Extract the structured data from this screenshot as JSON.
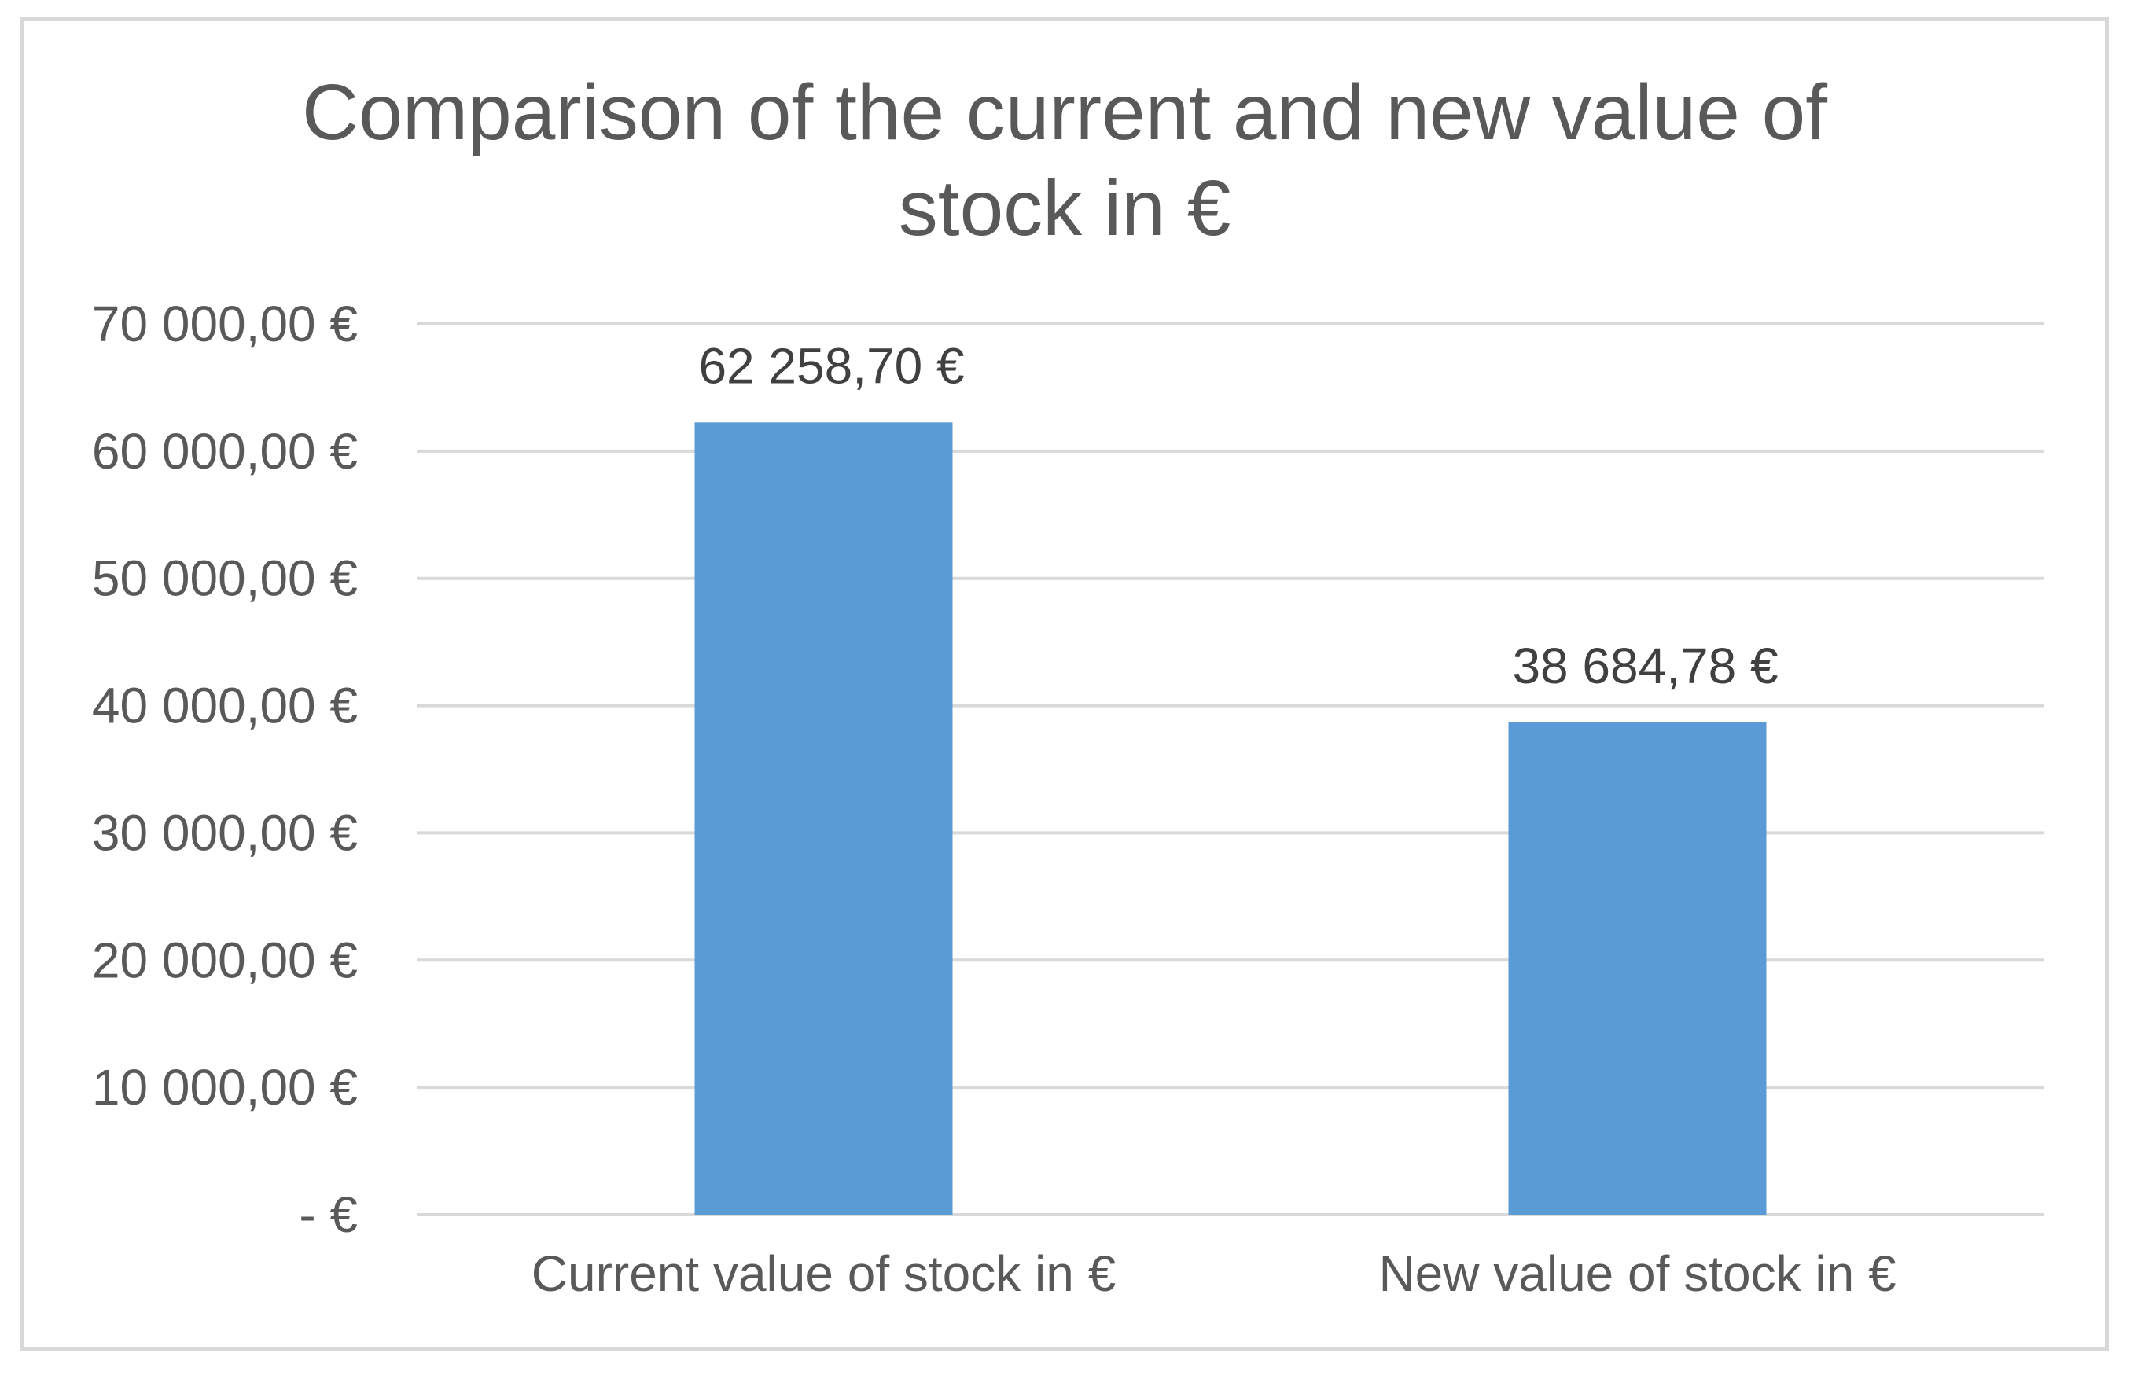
{
  "chart_data": {
    "type": "bar",
    "title": "Comparison of the current and new value of stock in €",
    "categories": [
      "Current value of stock in €",
      "New value of stock in €"
    ],
    "values": [
      62258.7,
      38684.78
    ],
    "data_labels": [
      "62 258,70 €",
      "38 684,78 €"
    ],
    "ylim": [
      0,
      70000
    ],
    "yticks": [
      0,
      10000,
      20000,
      30000,
      40000,
      50000,
      60000,
      70000
    ],
    "ytick_labels": [
      "-   €",
      "10 000,00 €",
      "20 000,00 €",
      "30 000,00 €",
      "40 000,00 €",
      "50 000,00 €",
      "60 000,00 €",
      "70 000,00 €"
    ],
    "xlabel": "",
    "ylabel": "",
    "grid": true,
    "legend": "none"
  },
  "colors": {
    "bar": "#5b9bd5",
    "grid": "#d9d9d9",
    "title": "#595959",
    "axis_text": "#595959",
    "data_label": "#404040",
    "frame": "#d9d9d9"
  }
}
